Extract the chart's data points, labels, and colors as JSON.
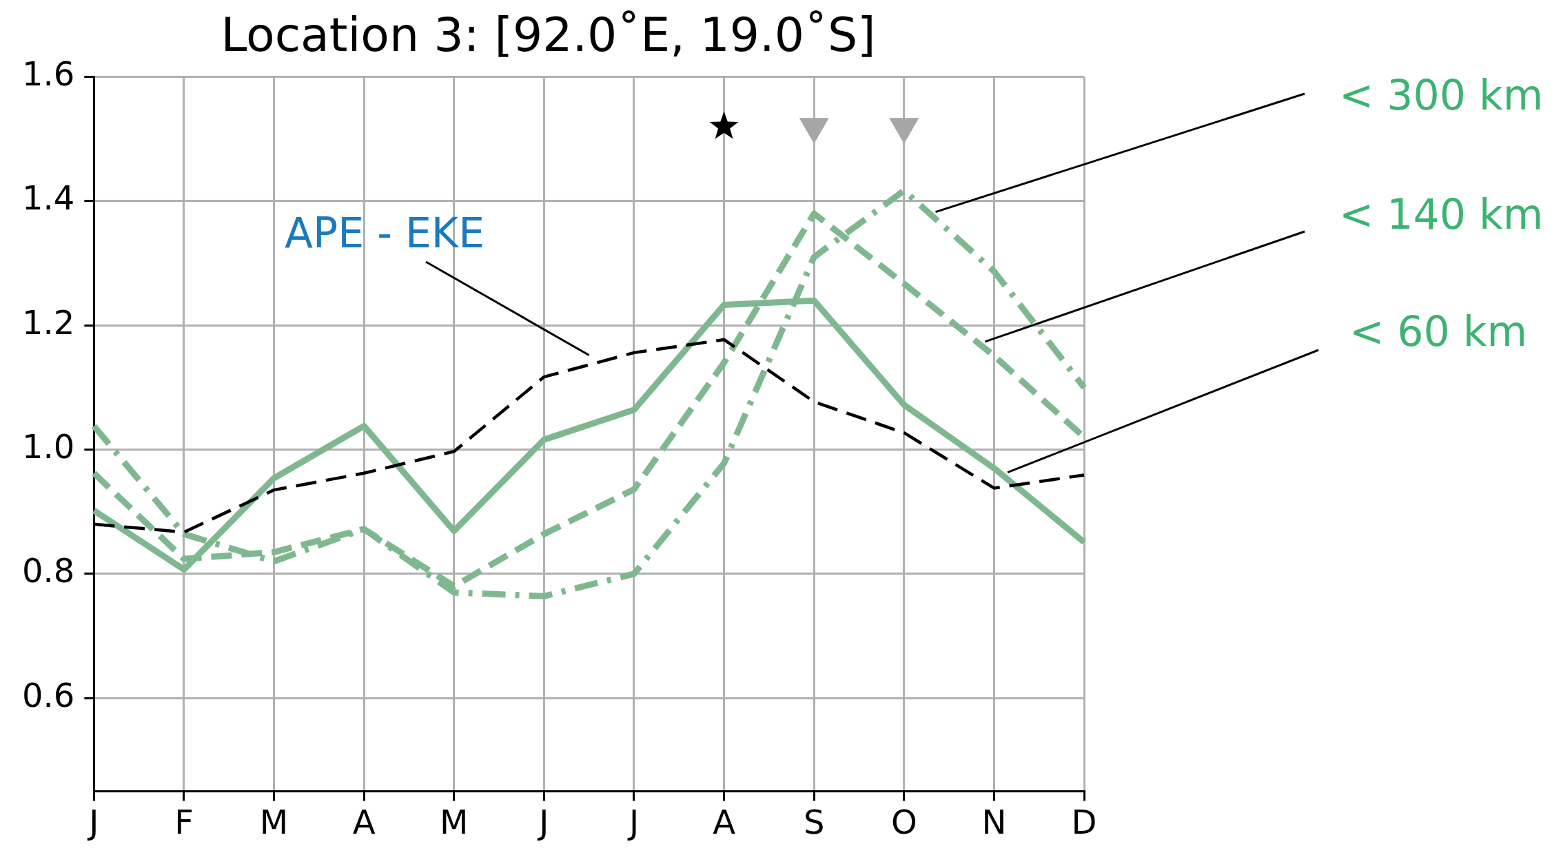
{
  "chart_data": {
    "type": "line",
    "title": "Location 3: [92.0˚E, 19.0˚S]",
    "categories": [
      "J",
      "F",
      "M",
      "A",
      "M",
      "J",
      "J",
      "A",
      "S",
      "O",
      "N",
      "D"
    ],
    "ylim": [
      0.45,
      1.6
    ],
    "yticks": [
      0.6,
      0.8,
      {
        "value": 1,
        "label": "1.0"
      },
      1.2,
      1.4,
      1.6
    ],
    "grid": true,
    "legend": false,
    "marker": "none",
    "series": [
      {
        "name": "APE - EKE",
        "color": "#000000",
        "line_style": "dashed",
        "values": [
          0.88,
          0.867,
          0.935,
          0.962,
          0.997,
          1.117,
          1.156,
          1.177,
          1.077,
          1.027,
          0.938,
          0.959
        ]
      },
      {
        "name": "< 60 km",
        "color": "#7fb88f",
        "line_style": "solid",
        "values": [
          0.902,
          0.807,
          0.954,
          1.038,
          0.869,
          1.016,
          1.064,
          1.233,
          1.24,
          1.072,
          0.97,
          0.851
        ]
      },
      {
        "name": "< 140 km",
        "color": "#7fb88f",
        "line_style": "dashed",
        "values": [
          0.962,
          0.824,
          0.835,
          0.872,
          0.78,
          0.864,
          0.936,
          1.14,
          1.38,
          1.267,
          1.151,
          1.02
        ]
      },
      {
        "name": "< 300 km",
        "color": "#7fb88f",
        "line_style": "dashdot",
        "values": [
          1.038,
          0.864,
          0.82,
          0.872,
          0.77,
          0.764,
          0.8,
          0.978,
          1.31,
          1.417,
          1.287,
          1.1
        ]
      },
      {
        "type": "scatter",
        "marker": "star",
        "color": "#000000",
        "values": [
          null,
          null,
          null,
          null,
          null,
          null,
          null,
          1.52,
          null,
          null,
          null,
          null
        ]
      },
      {
        "type": "scatter",
        "marker": "triangle",
        "color": "#a6a6a6",
        "values": [
          null,
          null,
          null,
          null,
          null,
          null,
          null,
          null,
          1.52,
          1.52,
          null,
          null
        ]
      }
    ]
  }
}
